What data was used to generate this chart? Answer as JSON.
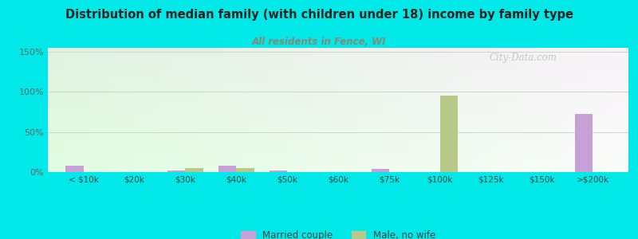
{
  "title": "Distribution of median family (with children under 18) income by family type",
  "subtitle": "All residents in Fence, WI",
  "categories": [
    "< $10k",
    "$20k",
    "$30k",
    "$40k",
    "$50k",
    "$60k",
    "$75k",
    "$100k",
    "$125k",
    "$150k",
    ">$200k"
  ],
  "married_couple": [
    8,
    0,
    2,
    8,
    2,
    0,
    4,
    0,
    0,
    0,
    73
  ],
  "male_no_wife": [
    0,
    0,
    5,
    5,
    0,
    0,
    0,
    95,
    0,
    0,
    0
  ],
  "married_color": "#c8a0d8",
  "male_color": "#b8c888",
  "background_outer": "#00e8e8",
  "background_plot_top": "#f0f8ee",
  "background_plot_bottom": "#e0f0e0",
  "title_color": "#222222",
  "subtitle_color": "#888877",
  "bar_width": 0.35,
  "ylim": [
    0,
    155
  ],
  "yticks": [
    0,
    50,
    100,
    150
  ],
  "ytick_labels": [
    "0%",
    "50%",
    "100%",
    "150%"
  ],
  "watermark": "City-Data.com",
  "grid_color": "#ccddcc"
}
